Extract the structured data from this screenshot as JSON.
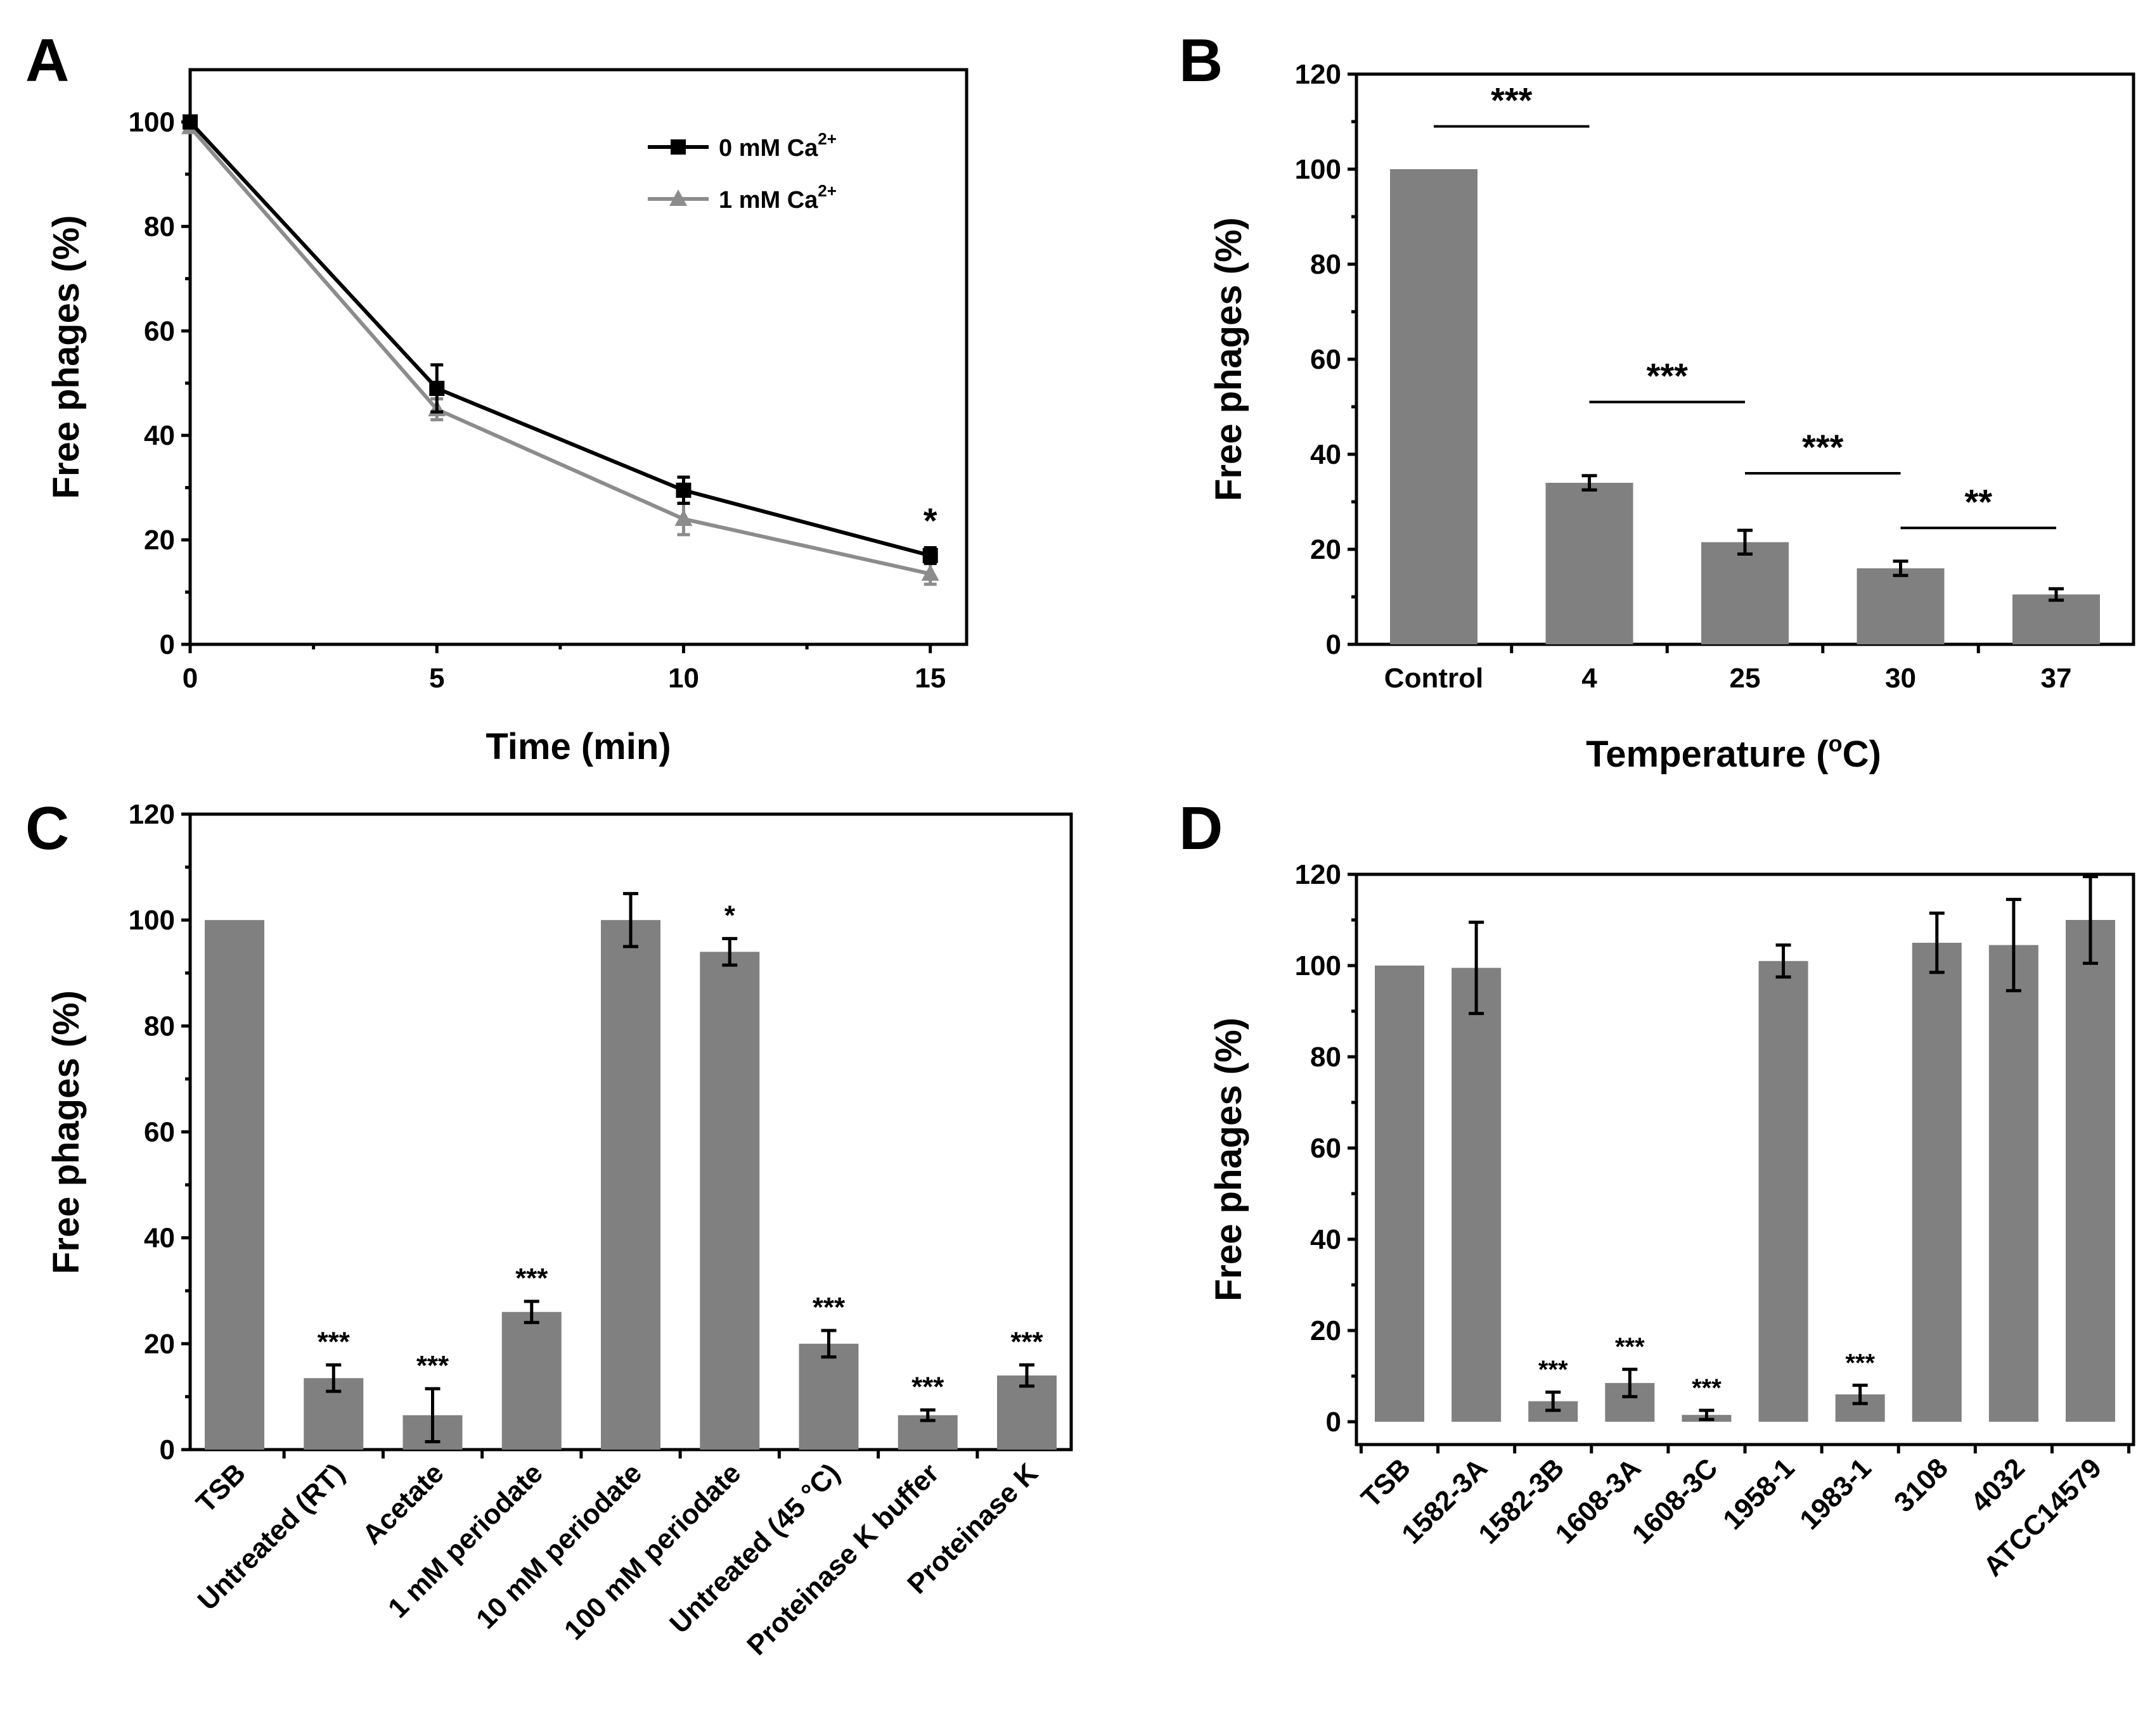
{
  "colors": {
    "bar": "#808080",
    "line_0mM": "#000000",
    "line_1mM": "#8c8c8c",
    "axis": "#000000"
  },
  "chart_data": [
    {
      "panel": "A",
      "type": "line",
      "xlabel": "Time (min)",
      "ylabel": "Free phages (%)",
      "xlim": [
        0,
        15.5
      ],
      "ylim": [
        0,
        110
      ],
      "xticks": [
        0,
        5,
        10,
        15
      ],
      "yticks": [
        0,
        20,
        40,
        60,
        80,
        100
      ],
      "legend": {
        "position": "top-right"
      },
      "series": [
        {
          "name": "0 mM Ca",
          "sup": "2+",
          "marker": "square",
          "color": "#000000",
          "x": [
            0,
            5,
            10,
            15
          ],
          "y": [
            100,
            49,
            29.5,
            17
          ],
          "err": [
            1,
            4.5,
            2.5,
            1.5
          ]
        },
        {
          "name": "1 mM Ca",
          "sup": "2+",
          "marker": "triangle",
          "color": "#8c8c8c",
          "x": [
            0,
            5,
            10,
            15
          ],
          "y": [
            99,
            45,
            24,
            13.5
          ],
          "err": [
            1,
            2,
            3,
            2
          ]
        }
      ],
      "annotations": [
        {
          "x": 15,
          "y": 25,
          "text": "*"
        }
      ]
    },
    {
      "panel": "B",
      "type": "bar",
      "xlabel": "Temperature (",
      "xlabel_sup": "o",
      "xlabel_end": "C)",
      "ylabel": "Free phages (%)",
      "ylim": [
        0,
        120
      ],
      "yticks": [
        0,
        20,
        40,
        60,
        80,
        100,
        120
      ],
      "categories": [
        "Control",
        "4",
        "25",
        "30",
        "37"
      ],
      "values": [
        100,
        34,
        21.5,
        16,
        10.5
      ],
      "err": [
        0,
        1.5,
        2.5,
        1.5,
        1.2
      ],
      "brackets": [
        {
          "from": 0,
          "to": 1,
          "y": 109,
          "text": "***"
        },
        {
          "from": 1,
          "to": 2,
          "y": 51,
          "text": "***"
        },
        {
          "from": 2,
          "to": 3,
          "y": 36,
          "text": "***"
        },
        {
          "from": 3,
          "to": 4,
          "y": 24.5,
          "text": "**"
        }
      ]
    },
    {
      "panel": "C",
      "type": "bar",
      "xlabel": "",
      "ylabel": "Free phages (%)",
      "ylim": [
        0,
        120
      ],
      "yticks": [
        0,
        20,
        40,
        60,
        80,
        100,
        120
      ],
      "categories": [
        "TSB",
        "Untreated (RT)",
        "Acetate",
        "1 mM periodate",
        "10 mM periodate",
        "100 mM periodate",
        "Untreated (45 °C)",
        "Proteinase K buffer",
        "Proteinase K"
      ],
      "values": [
        100,
        13.5,
        6.5,
        26,
        100,
        94,
        20,
        6.5,
        14
      ],
      "err": [
        0,
        2.5,
        5,
        2,
        5,
        2.5,
        2.5,
        1,
        2
      ],
      "significance": [
        "",
        "***",
        "***",
        "***",
        "",
        "*",
        "***",
        "***",
        "***"
      ]
    },
    {
      "panel": "D",
      "type": "bar",
      "xlabel": "",
      "ylabel": "Free phages (%)",
      "ylim": [
        -5,
        120
      ],
      "yticks": [
        0,
        20,
        40,
        60,
        80,
        100,
        120
      ],
      "categories": [
        "TSB",
        "1582-3A",
        "1582-3B",
        "1608-3A",
        "1608-3C",
        "1958-1",
        "1983-1",
        "3108",
        "4032",
        "ATCC14579"
      ],
      "values": [
        100,
        99.5,
        4.5,
        8.5,
        1.5,
        101,
        6,
        105,
        104.5,
        110
      ],
      "err": [
        0,
        10,
        2,
        3,
        1,
        3.5,
        2,
        6.5,
        10,
        9.5
      ],
      "significance": [
        "",
        "",
        "***",
        "***",
        "***",
        "",
        "***",
        "",
        "",
        ""
      ]
    }
  ]
}
